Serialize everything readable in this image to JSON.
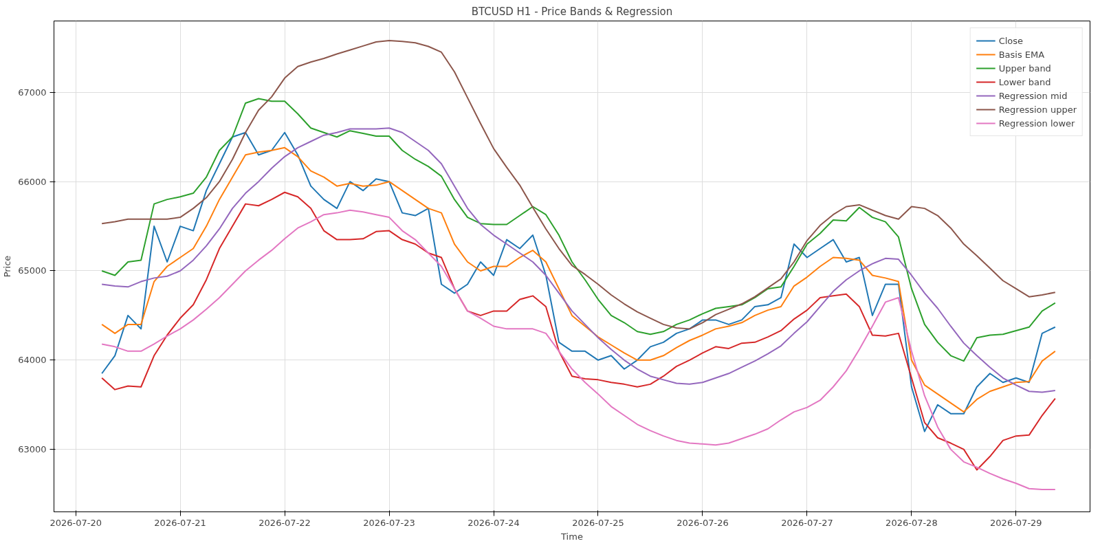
{
  "chart_data": {
    "type": "line",
    "title": "BTCUSD H1 - Price Bands & Regression",
    "xlabel": "Time",
    "ylabel": "Price",
    "x": [
      "2026-07-20T06:00",
      "2026-07-20T09:00",
      "2026-07-20T12:00",
      "2026-07-20T15:00",
      "2026-07-20T18:00",
      "2026-07-20T21:00",
      "2026-07-21T00:00",
      "2026-07-21T03:00",
      "2026-07-21T06:00",
      "2026-07-21T09:00",
      "2026-07-21T12:00",
      "2026-07-21T15:00",
      "2026-07-21T18:00",
      "2026-07-21T21:00",
      "2026-07-22T00:00",
      "2026-07-22T03:00",
      "2026-07-22T06:00",
      "2026-07-22T09:00",
      "2026-07-22T12:00",
      "2026-07-22T15:00",
      "2026-07-22T18:00",
      "2026-07-22T21:00",
      "2026-07-23T00:00",
      "2026-07-23T03:00",
      "2026-07-23T06:00",
      "2026-07-23T09:00",
      "2026-07-23T12:00",
      "2026-07-23T15:00",
      "2026-07-23T18:00",
      "2026-07-23T21:00",
      "2026-07-24T00:00",
      "2026-07-24T03:00",
      "2026-07-24T06:00",
      "2026-07-24T09:00",
      "2026-07-24T12:00",
      "2026-07-24T15:00",
      "2026-07-24T18:00",
      "2026-07-24T21:00",
      "2026-07-25T00:00",
      "2026-07-25T03:00",
      "2026-07-25T06:00",
      "2026-07-25T09:00",
      "2026-07-25T12:00",
      "2026-07-25T15:00",
      "2026-07-25T18:00",
      "2026-07-25T21:00",
      "2026-07-26T00:00",
      "2026-07-26T03:00",
      "2026-07-26T06:00",
      "2026-07-26T09:00",
      "2026-07-26T12:00",
      "2026-07-26T15:00",
      "2026-07-26T18:00",
      "2026-07-26T21:00",
      "2026-07-27T00:00",
      "2026-07-27T03:00",
      "2026-07-27T06:00",
      "2026-07-27T09:00",
      "2026-07-27T12:00",
      "2026-07-27T15:00",
      "2026-07-27T18:00",
      "2026-07-27T21:00",
      "2026-07-28T00:00",
      "2026-07-28T03:00",
      "2026-07-28T06:00",
      "2026-07-28T09:00",
      "2026-07-28T12:00",
      "2026-07-28T15:00",
      "2026-07-28T18:00",
      "2026-07-28T21:00",
      "2026-07-29T00:00",
      "2026-07-29T03:00",
      "2026-07-29T06:00",
      "2026-07-29T09:00"
    ],
    "series": [
      {
        "name": "Close",
        "color": "#1f77b4",
        "values": [
          63850,
          64050,
          64500,
          64350,
          65500,
          65100,
          65500,
          65450,
          65900,
          66200,
          66500,
          66550,
          66300,
          66350,
          66550,
          66300,
          65950,
          65800,
          65700,
          66000,
          65900,
          66030,
          66000,
          65650,
          65620,
          65700,
          64850,
          64750,
          64850,
          65100,
          64950,
          65350,
          65250,
          65400,
          64950,
          64200,
          64100,
          64100,
          64000,
          64050,
          63900,
          64000,
          64150,
          64200,
          64300,
          64350,
          64450,
          64450,
          64400,
          64450,
          64600,
          64620,
          64700,
          65300,
          65150,
          65250,
          65350,
          65100,
          65150,
          64500,
          64850,
          64850,
          63700,
          63200,
          63500,
          63400,
          63400,
          63700,
          63850,
          63750,
          63800,
          63750,
          64300,
          64370
        ]
      },
      {
        "name": "Basis EMA",
        "color": "#ff7f0e",
        "values": [
          64400,
          64300,
          64400,
          64400,
          64880,
          65050,
          65150,
          65250,
          65500,
          65800,
          66050,
          66300,
          66330,
          66350,
          66380,
          66280,
          66120,
          66050,
          65950,
          65980,
          65950,
          65960,
          66000,
          65900,
          65800,
          65700,
          65650,
          65300,
          65100,
          65000,
          65050,
          65050,
          65150,
          65230,
          65100,
          64800,
          64500,
          64380,
          64260,
          64170,
          64080,
          64000,
          64000,
          64050,
          64140,
          64220,
          64280,
          64350,
          64380,
          64420,
          64500,
          64560,
          64600,
          64830,
          64930,
          65050,
          65150,
          65140,
          65120,
          64950,
          64920,
          64880,
          64000,
          63720,
          63620,
          63520,
          63420,
          63560,
          63650,
          63700,
          63750,
          63760,
          63990,
          64100
        ]
      },
      {
        "name": "Upper band",
        "color": "#2ca02c",
        "values": [
          65000,
          64950,
          65100,
          65120,
          65750,
          65800,
          65830,
          65870,
          66050,
          66350,
          66500,
          66880,
          66930,
          66900,
          66900,
          66760,
          66600,
          66550,
          66500,
          66570,
          66540,
          66510,
          66510,
          66350,
          66250,
          66170,
          66060,
          65800,
          65600,
          65530,
          65520,
          65520,
          65620,
          65720,
          65630,
          65400,
          65100,
          64900,
          64680,
          64500,
          64420,
          64320,
          64290,
          64320,
          64400,
          64450,
          64520,
          64580,
          64600,
          64620,
          64700,
          64800,
          64820,
          65050,
          65300,
          65420,
          65570,
          65560,
          65710,
          65600,
          65550,
          65380,
          64800,
          64400,
          64200,
          64050,
          63990,
          64250,
          64280,
          64290,
          64330,
          64370,
          64550,
          64640
        ]
      },
      {
        "name": "Lower band",
        "color": "#d62728",
        "values": [
          63800,
          63670,
          63710,
          63700,
          64050,
          64280,
          64470,
          64620,
          64900,
          65250,
          65500,
          65750,
          65730,
          65800,
          65880,
          65830,
          65700,
          65450,
          65350,
          65350,
          65360,
          65440,
          65450,
          65350,
          65300,
          65200,
          65150,
          64800,
          64550,
          64500,
          64550,
          64550,
          64680,
          64720,
          64600,
          64100,
          63820,
          63790,
          63780,
          63750,
          63730,
          63700,
          63730,
          63820,
          63930,
          64000,
          64080,
          64150,
          64130,
          64190,
          64200,
          64260,
          64330,
          64460,
          64560,
          64700,
          64720,
          64740,
          64600,
          64280,
          64270,
          64300,
          63800,
          63300,
          63130,
          63070,
          63000,
          62770,
          62920,
          63100,
          63150,
          63160,
          63380,
          63570
        ]
      },
      {
        "name": "Regression mid",
        "color": "#9467bd",
        "values": [
          64850,
          64830,
          64820,
          64880,
          64920,
          64940,
          65000,
          65120,
          65280,
          65470,
          65700,
          65870,
          66000,
          66150,
          66280,
          66380,
          66450,
          66520,
          66550,
          66590,
          66590,
          66590,
          66600,
          66550,
          66450,
          66350,
          66200,
          65950,
          65700,
          65520,
          65400,
          65300,
          65200,
          65100,
          64950,
          64750,
          64550,
          64400,
          64250,
          64120,
          64000,
          63900,
          63820,
          63780,
          63740,
          63730,
          63750,
          63800,
          63850,
          63920,
          63990,
          64070,
          64160,
          64300,
          64430,
          64600,
          64770,
          64900,
          65000,
          65080,
          65140,
          65130,
          64950,
          64750,
          64580,
          64380,
          64190,
          64050,
          63920,
          63800,
          63720,
          63650,
          63640,
          63660
        ]
      },
      {
        "name": "Regression upper",
        "color": "#8c564b",
        "values": [
          65530,
          65550,
          65580,
          65580,
          65580,
          65580,
          65600,
          65700,
          65820,
          66000,
          66250,
          66550,
          66800,
          66950,
          67160,
          67290,
          67340,
          67380,
          67430,
          67475,
          67520,
          67565,
          67580,
          67570,
          67555,
          67515,
          67450,
          67230,
          66940,
          66650,
          66370,
          66160,
          65960,
          65710,
          65470,
          65250,
          65060,
          64960,
          64850,
          64730,
          64630,
          64540,
          64470,
          64400,
          64360,
          64350,
          64420,
          64510,
          64570,
          64630,
          64710,
          64810,
          64910,
          65100,
          65340,
          65510,
          65630,
          65720,
          65740,
          65680,
          65620,
          65580,
          65720,
          65700,
          65620,
          65480,
          65300,
          65170,
          65030,
          64890,
          64800,
          64710,
          64730,
          64760
        ]
      },
      {
        "name": "Regression lower",
        "color": "#e377c2",
        "values": [
          64180,
          64150,
          64100,
          64100,
          64180,
          64270,
          64350,
          64450,
          64570,
          64700,
          64850,
          65000,
          65120,
          65230,
          65360,
          65480,
          65550,
          65630,
          65650,
          65680,
          65660,
          65630,
          65600,
          65450,
          65350,
          65200,
          65050,
          64800,
          64550,
          64470,
          64380,
          64350,
          64350,
          64350,
          64300,
          64100,
          63900,
          63750,
          63620,
          63480,
          63380,
          63280,
          63210,
          63150,
          63100,
          63070,
          63060,
          63050,
          63070,
          63120,
          63170,
          63230,
          63330,
          63420,
          63470,
          63550,
          63700,
          63880,
          64120,
          64380,
          64650,
          64700,
          64100,
          63600,
          63250,
          63000,
          62860,
          62800,
          62730,
          62670,
          62620,
          62560,
          62550,
          62550
        ]
      }
    ],
    "xlim": [
      "2026-07-19T19:00",
      "2026-07-29T17:00"
    ],
    "xticks": [
      "2026-07-20",
      "2026-07-21",
      "2026-07-22",
      "2026-07-23",
      "2026-07-24",
      "2026-07-25",
      "2026-07-26",
      "2026-07-27",
      "2026-07-28",
      "2026-07-29"
    ],
    "ylim": [
      62300,
      67800
    ],
    "yticks": [
      63000,
      64000,
      65000,
      66000,
      67000
    ],
    "grid": true,
    "legend": "top right",
    "line_style": "solid",
    "marker": "none"
  }
}
